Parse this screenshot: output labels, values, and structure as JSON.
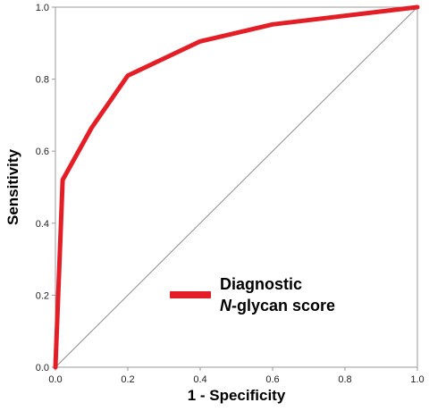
{
  "chart_data": {
    "type": "line",
    "xlabel": "1 - Specificity",
    "ylabel": "Sensitivity",
    "xlim": [
      0,
      1
    ],
    "ylim": [
      0,
      1
    ],
    "xticks": [
      "0.0",
      "0.2",
      "0.4",
      "0.6",
      "0.8",
      "1.0"
    ],
    "yticks": [
      "0.0",
      "0.2",
      "0.4",
      "0.6",
      "0.8",
      "1.0"
    ],
    "grid": false,
    "series": [
      {
        "name": "Diagnostic N-glycan score",
        "color": "#e41e26",
        "x": [
          0.0,
          0.02,
          0.1,
          0.2,
          0.4,
          0.6,
          1.0
        ],
        "y": [
          0.0,
          0.52,
          0.665,
          0.81,
          0.905,
          0.952,
          1.0
        ]
      },
      {
        "name": "",
        "color": "#8c8c8c",
        "x": [
          0,
          1
        ],
        "y": [
          0,
          1
        ]
      }
    ],
    "legend": {
      "position": "lower-right",
      "line1": "Diagnostic",
      "line2_italic": "N",
      "line2_rest": "-glycan score"
    }
  }
}
